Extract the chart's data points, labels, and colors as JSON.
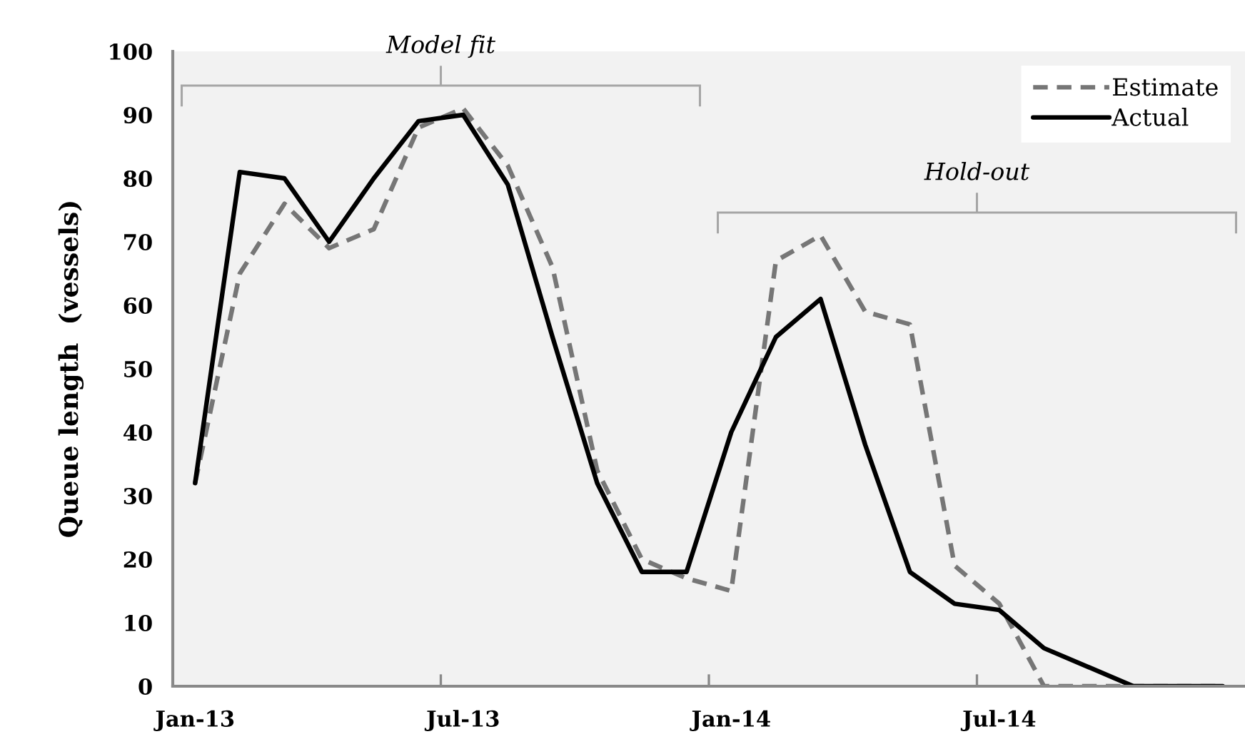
{
  "chart_data": {
    "type": "line",
    "ylabel": "Queue length  (vessels)",
    "categories": [
      "Jan-13",
      null,
      null,
      null,
      null,
      null,
      "Jul-13",
      null,
      null,
      null,
      null,
      null,
      "Jan-14",
      null,
      null,
      null,
      null,
      null,
      "Jul-14",
      null,
      null,
      null,
      null,
      null
    ],
    "ylim": [
      0,
      100
    ],
    "yticks": [
      0,
      10,
      20,
      30,
      40,
      50,
      60,
      70,
      80,
      90,
      100
    ],
    "series": [
      {
        "name": "Estimate",
        "color": "#767676",
        "line_style": "dashed",
        "values": [
          32,
          65,
          76,
          69,
          72,
          88,
          91,
          82,
          66,
          34,
          20,
          17,
          15,
          67,
          71,
          59,
          57,
          19,
          13,
          0,
          0,
          0,
          0,
          0
        ]
      },
      {
        "name": "Actual",
        "color": "#000000",
        "line_style": "solid",
        "values": [
          32,
          81,
          80,
          70,
          80,
          89,
          90,
          79,
          55,
          32,
          18,
          18,
          40,
          55,
          61,
          38,
          18,
          13,
          12,
          6,
          3,
          0,
          0,
          0
        ]
      }
    ],
    "legend": "top right",
    "annotations": [
      "Model fit",
      "Hold-out"
    ]
  }
}
